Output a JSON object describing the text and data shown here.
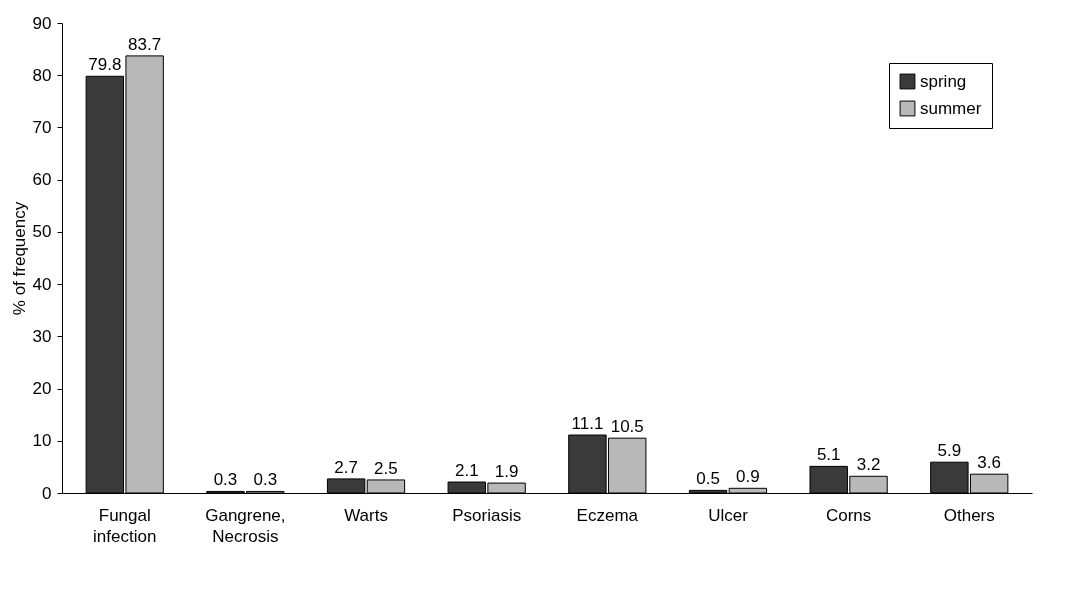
{
  "chart_data": {
    "type": "bar",
    "ylabel": "% of frequency",
    "categories": [
      "Fungal infection",
      "Gangrene, Necrosis",
      "Warts",
      "Psoriasis",
      "Eczema",
      "Ulcer",
      "Corns",
      "Others"
    ],
    "series": [
      {
        "name": "spring",
        "color": "#3a3a3a",
        "values": [
          79.8,
          0.3,
          2.7,
          2.1,
          11.1,
          0.5,
          5.1,
          5.9
        ]
      },
      {
        "name": "summer",
        "color": "#b8b8b8",
        "values": [
          83.7,
          0.3,
          2.5,
          1.9,
          10.5,
          0.9,
          3.2,
          3.6
        ]
      }
    ],
    "ylim": [
      0,
      90
    ],
    "yticks": [
      0,
      10,
      20,
      30,
      40,
      50,
      60,
      70,
      80,
      90
    ],
    "grid": false,
    "legend": "top right",
    "data_labels": true
  }
}
